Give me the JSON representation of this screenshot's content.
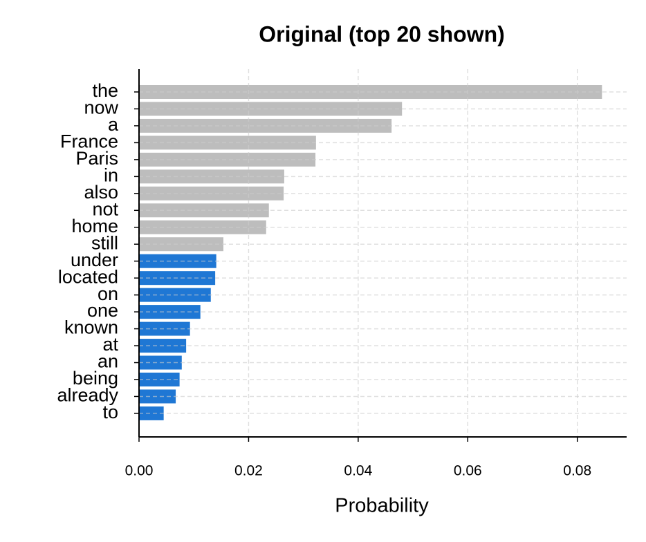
{
  "chart_data": {
    "type": "barh",
    "title": "Original (top 20 shown)",
    "xlabel": "Probability",
    "categories": [
      "the",
      "now",
      "a",
      "France",
      "Paris",
      "in",
      "also",
      "not",
      "home",
      "still",
      "under",
      "located",
      "on",
      "one",
      "known",
      "at",
      "an",
      "being",
      "already",
      "to"
    ],
    "values": [
      0.0845,
      0.048,
      0.0461,
      0.0323,
      0.0322,
      0.0265,
      0.0264,
      0.0237,
      0.0232,
      0.0154,
      0.0141,
      0.0139,
      0.0131,
      0.0112,
      0.0093,
      0.0086,
      0.0078,
      0.0074,
      0.0067,
      0.0045
    ],
    "colors": [
      "#bdbdbd",
      "#bdbdbd",
      "#bdbdbd",
      "#bdbdbd",
      "#bdbdbd",
      "#bdbdbd",
      "#bdbdbd",
      "#bdbdbd",
      "#bdbdbd",
      "#bdbdbd",
      "#1f77d4",
      "#1f77d4",
      "#1f77d4",
      "#1f77d4",
      "#1f77d4",
      "#1f77d4",
      "#1f77d4",
      "#1f77d4",
      "#1f77d4",
      "#1f77d4"
    ],
    "xlim": [
      0,
      0.089
    ],
    "xticks": [
      {
        "value": 0,
        "label": "0.00"
      },
      {
        "value": 0.02,
        "label": "0.02"
      },
      {
        "value": 0.04,
        "label": "0.04"
      },
      {
        "value": 0.06,
        "label": "0.06"
      },
      {
        "value": 0.08,
        "label": "0.08"
      }
    ],
    "grid": true
  }
}
